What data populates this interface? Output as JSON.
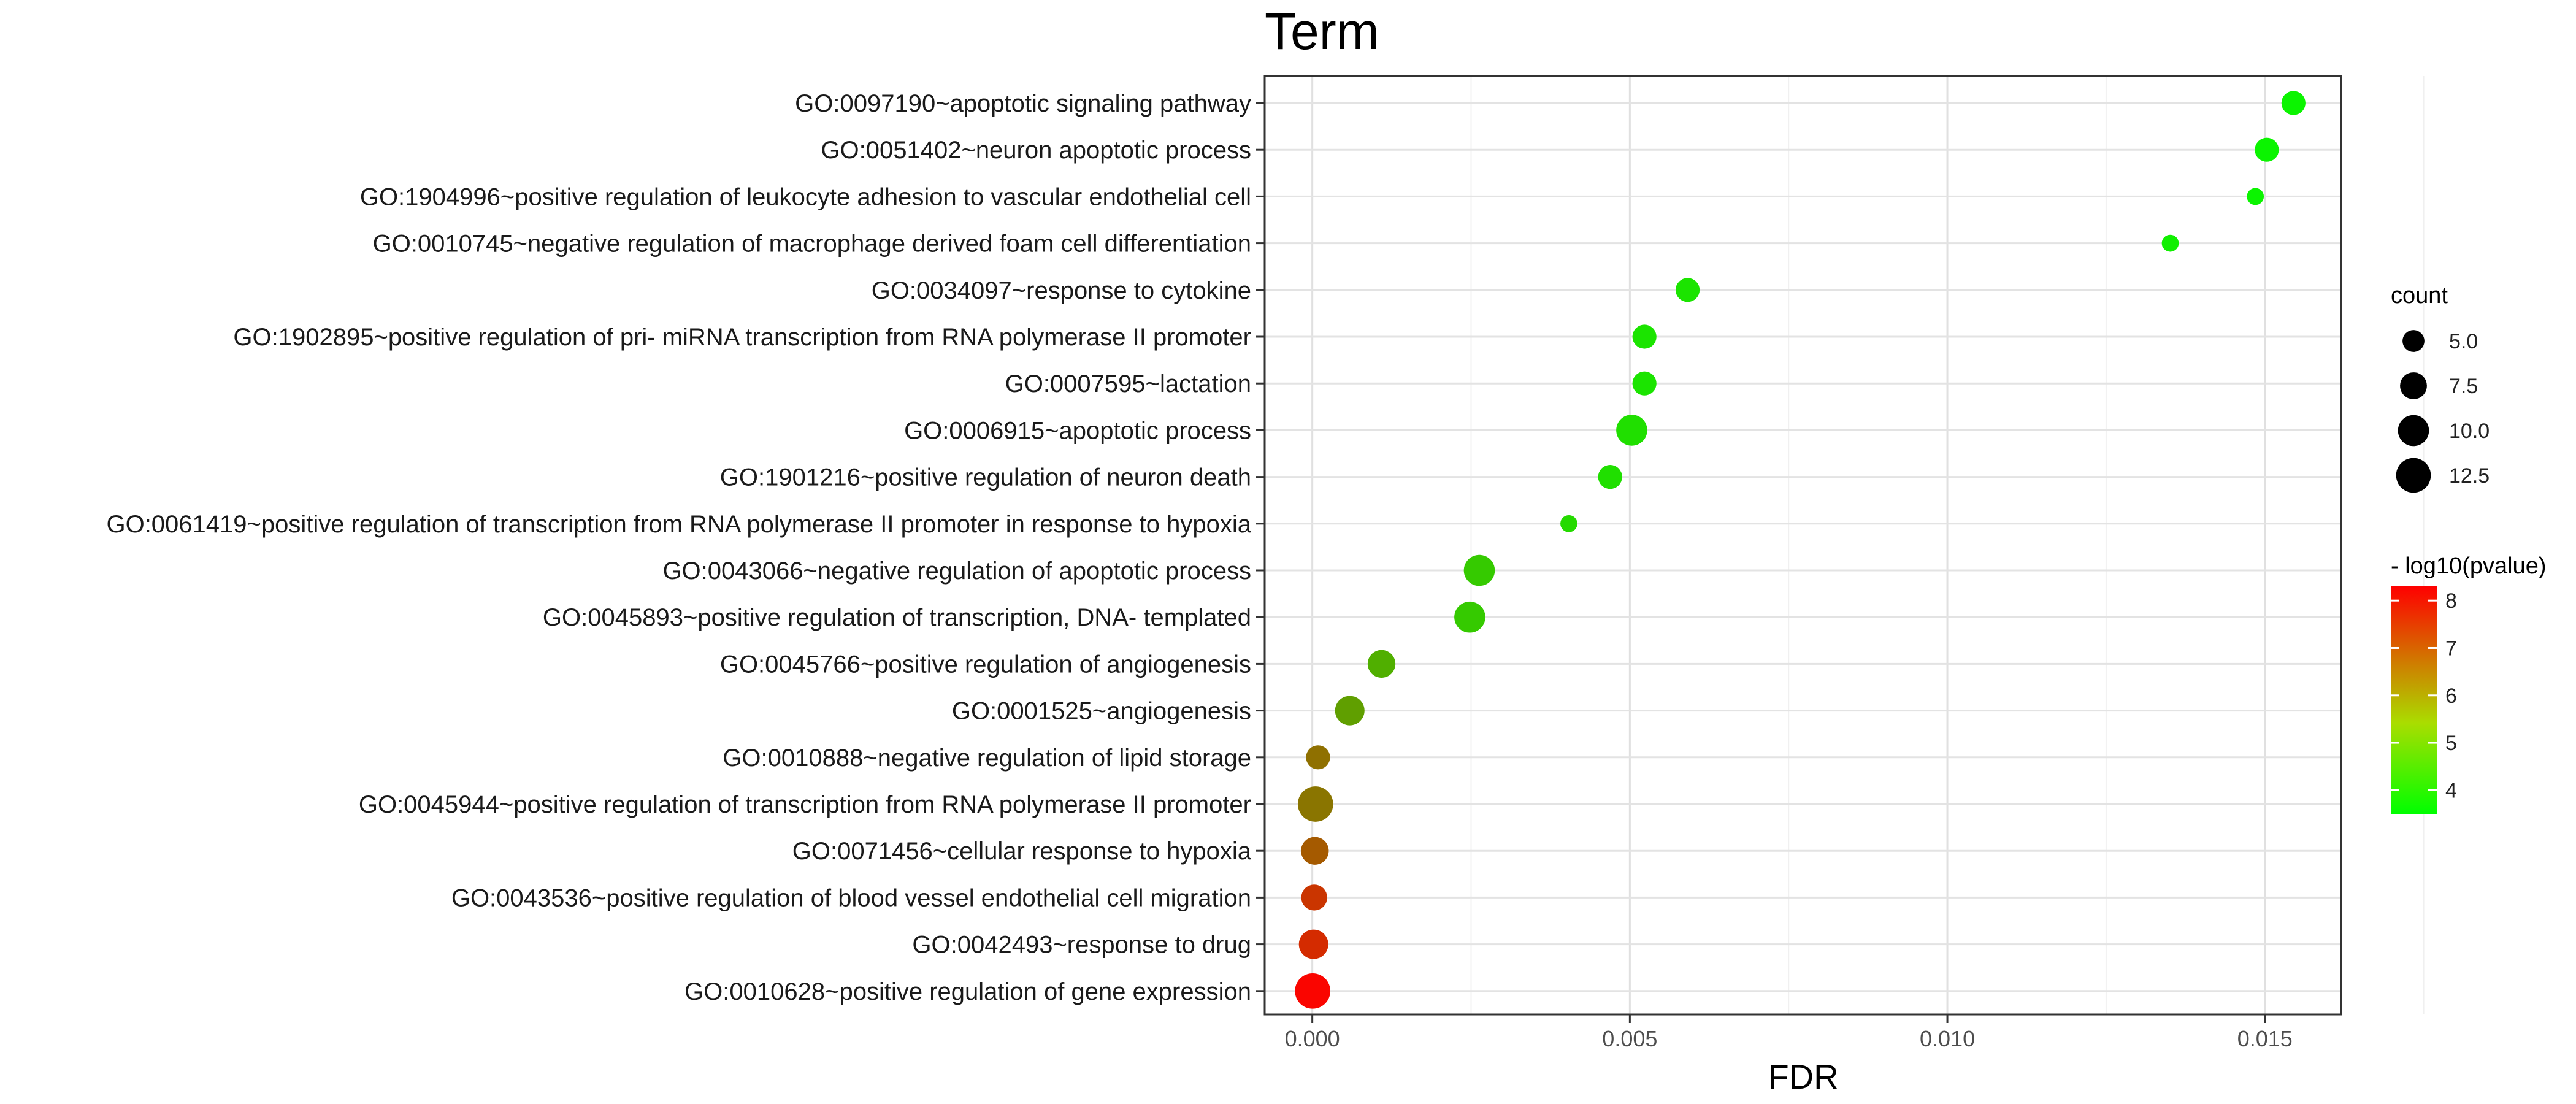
{
  "chart_data": {
    "type": "scatter",
    "title": "Term",
    "xlabel": "FDR",
    "ylabel": "",
    "xlim": [
      -0.00075,
      0.0162
    ],
    "xticks": [
      0.0,
      0.005,
      0.01,
      0.015
    ],
    "xtick_labels": [
      "0.000",
      "0.005",
      "0.010",
      "0.015"
    ],
    "grid": true,
    "terms": [
      {
        "label": "GO:0097190~apoptotic signaling pathway",
        "fdr": 0.01545,
        "count": 6,
        "neglog10p": 3.7
      },
      {
        "label": "GO:0051402~neuron apoptotic process",
        "fdr": 0.01503,
        "count": 6,
        "neglog10p": 3.7
      },
      {
        "label": "GO:1904996~positive regulation of leukocyte adhesion to vascular endothelial cell",
        "fdr": 0.01485,
        "count": 3,
        "neglog10p": 3.7
      },
      {
        "label": "GO:0010745~negative regulation of macrophage derived foam cell differentiation",
        "fdr": 0.01351,
        "count": 3,
        "neglog10p": 3.8
      },
      {
        "label": "GO:0034097~response to cytokine",
        "fdr": 0.00591,
        "count": 6,
        "neglog10p": 4.0
      },
      {
        "label": "GO:1902895~positive regulation of pri- miRNA transcription from RNA polymerase II promoter",
        "fdr": 0.00523,
        "count": 6,
        "neglog10p": 4.0
      },
      {
        "label": "GO:0007595~lactation",
        "fdr": 0.00523,
        "count": 6,
        "neglog10p": 4.0
      },
      {
        "label": "GO:0006915~apoptotic process",
        "fdr": 0.00503,
        "count": 10,
        "neglog10p": 4.1
      },
      {
        "label": "GO:1901216~positive regulation of neuron death",
        "fdr": 0.00469,
        "count": 6,
        "neglog10p": 4.1
      },
      {
        "label": "GO:0061419~positive regulation of transcription from RNA polymerase II promoter in response to hypoxia",
        "fdr": 0.00404,
        "count": 3,
        "neglog10p": 4.2
      },
      {
        "label": "GO:0043066~negative regulation of apoptotic process",
        "fdr": 0.00263,
        "count": 10,
        "neglog10p": 4.5
      },
      {
        "label": "GO:0045893~positive regulation of transcription, DNA- templated",
        "fdr": 0.00248,
        "count": 10,
        "neglog10p": 4.5
      },
      {
        "label": "GO:0045766~positive regulation of angiogenesis",
        "fdr": 0.00109,
        "count": 8,
        "neglog10p": 5.0
      },
      {
        "label": "GO:0001525~angiogenesis",
        "fdr": 0.00059,
        "count": 9,
        "neglog10p": 5.3
      },
      {
        "label": "GO:0010888~negative regulation of lipid storage",
        "fdr": 9e-05,
        "count": 6,
        "neglog10p": 6.2
      },
      {
        "label": "GO:0045944~positive regulation of transcription from RNA polymerase II promoter",
        "fdr": 5e-05,
        "count": 13,
        "neglog10p": 6.1
      },
      {
        "label": "GO:0071456~cellular response to hypoxia",
        "fdr": 4e-05,
        "count": 8,
        "neglog10p": 6.6
      },
      {
        "label": "GO:0043536~positive regulation of blood vessel endothelial cell migration",
        "fdr": 3e-05,
        "count": 7,
        "neglog10p": 7.3
      },
      {
        "label": "GO:0042493~response to drug",
        "fdr": 2e-05,
        "count": 9,
        "neglog10p": 7.5
      },
      {
        "label": "GO:0010628~positive regulation of gene expression",
        "fdr": 5e-06,
        "count": 13,
        "neglog10p": 8.2
      }
    ],
    "size_legend": {
      "title": "count",
      "entries": [
        {
          "label": "5.0",
          "value": 5.0
        },
        {
          "label": "7.5",
          "value": 7.5
        },
        {
          "label": "10.0",
          "value": 10.0
        },
        {
          "label": "12.5",
          "value": 12.5
        }
      ]
    },
    "color_legend": {
      "title": "- log10(pvalue)",
      "min": 3.5,
      "max": 8.3,
      "ticks": [
        {
          "label": "4",
          "value": 4
        },
        {
          "label": "5",
          "value": 5
        },
        {
          "label": "6",
          "value": 6
        },
        {
          "label": "7",
          "value": 7
        },
        {
          "label": "8",
          "value": 8
        }
      ],
      "low_color": "#00ff00",
      "high_color": "#ff0000"
    }
  }
}
